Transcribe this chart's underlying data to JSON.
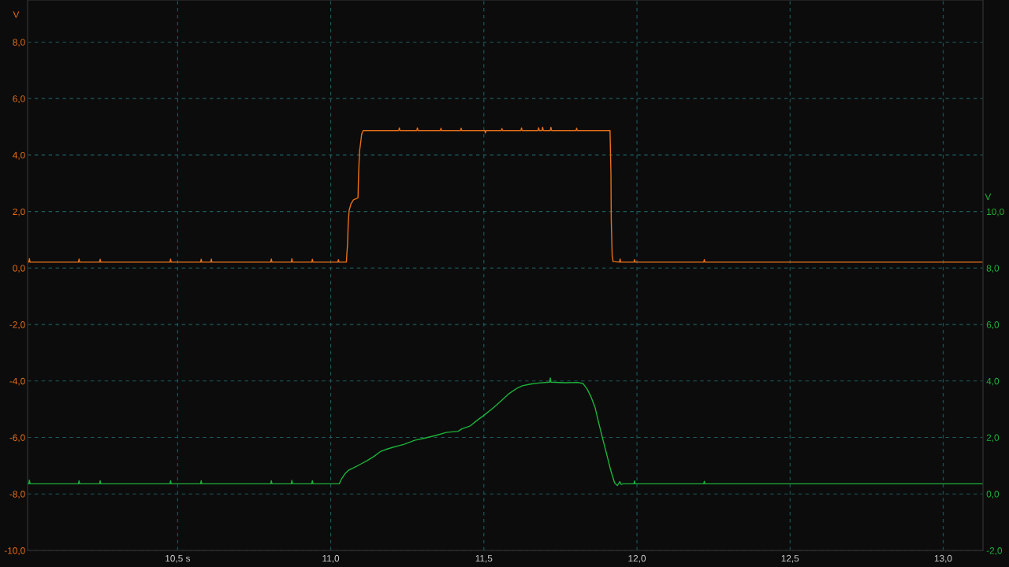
{
  "chart_data": {
    "type": "line",
    "ylabel": "V",
    "y2label": "V",
    "xlim": [
      10.01,
      13.13
    ],
    "xticks": [
      {
        "value": 10.5,
        "label": "10,5 s"
      },
      {
        "value": 11.0,
        "label": "11,0"
      },
      {
        "value": 11.5,
        "label": "11,5"
      },
      {
        "value": 12.0,
        "label": "12,0"
      },
      {
        "value": 12.5,
        "label": "12,5"
      },
      {
        "value": 13.0,
        "label": "13,0"
      }
    ],
    "ylim": [
      -10,
      9.49
    ],
    "yticks": [
      {
        "value": 8,
        "label": "8,0"
      },
      {
        "value": 6,
        "label": "6,0"
      },
      {
        "value": 4,
        "label": "4,0"
      },
      {
        "value": 2,
        "label": "2,0"
      },
      {
        "value": 0,
        "label": "0,0"
      },
      {
        "value": -2,
        "label": "-2,0"
      },
      {
        "value": -4,
        "label": "-4,0"
      },
      {
        "value": -6,
        "label": "-6,0"
      },
      {
        "value": -8,
        "label": "-8,0"
      },
      {
        "value": -10,
        "label": "-10,0"
      }
    ],
    "y2lim": [
      -2,
      17.49
    ],
    "y2ticks": [
      {
        "value": 10,
        "label": "10,0"
      },
      {
        "value": 8,
        "label": "8,0"
      },
      {
        "value": 6,
        "label": "6,0"
      },
      {
        "value": 4,
        "label": "4,0"
      },
      {
        "value": 2,
        "label": "2,0"
      },
      {
        "value": 0,
        "label": "0,0"
      },
      {
        "value": -2,
        "label": "-2,0"
      }
    ],
    "grid": true,
    "line_style": "solid",
    "series": [
      {
        "color": "#e8711a",
        "x": [
          10.01,
          10.014,
          10.016,
          10.018,
          10.176,
          10.178,
          10.18,
          10.245,
          10.247,
          10.249,
          10.475,
          10.477,
          10.479,
          10.575,
          10.577,
          10.579,
          10.608,
          10.61,
          10.612,
          10.804,
          10.806,
          10.808,
          10.871,
          10.873,
          10.875,
          10.938,
          10.94,
          10.942,
          11.023,
          11.025,
          11.027,
          11.051,
          11.055,
          11.057,
          11.06,
          11.066,
          11.074,
          11.089,
          11.091,
          11.094,
          11.098,
          11.101,
          11.106,
          11.222,
          11.224,
          11.226,
          11.281,
          11.283,
          11.285,
          11.358,
          11.36,
          11.362,
          11.424,
          11.426,
          11.428,
          11.503,
          11.505,
          11.507,
          11.557,
          11.559,
          11.561,
          11.621,
          11.623,
          11.625,
          11.677,
          11.679,
          11.681,
          11.69,
          11.692,
          11.694,
          11.717,
          11.719,
          11.721,
          11.801,
          11.803,
          11.805,
          11.912,
          11.915,
          11.916,
          11.919,
          11.922,
          11.943,
          11.945,
          11.947,
          11.99,
          11.992,
          11.994,
          12.218,
          12.22,
          12.222,
          13.13
        ],
        "values": [
          0.21,
          0.21,
          0.33,
          0.21,
          0.21,
          0.32,
          0.21,
          0.21,
          0.31,
          0.21,
          0.21,
          0.32,
          0.21,
          0.21,
          0.31,
          0.21,
          0.21,
          0.32,
          0.21,
          0.21,
          0.32,
          0.21,
          0.21,
          0.33,
          0.21,
          0.21,
          0.31,
          0.21,
          0.21,
          0.3,
          0.21,
          0.21,
          0.88,
          1.56,
          2.04,
          2.27,
          2.41,
          2.49,
          3.34,
          4.13,
          4.46,
          4.74,
          4.87,
          4.87,
          4.96,
          4.87,
          4.87,
          4.96,
          4.87,
          4.87,
          4.95,
          4.87,
          4.87,
          4.95,
          4.87,
          4.87,
          4.78,
          4.87,
          4.87,
          4.94,
          4.87,
          4.87,
          4.96,
          4.87,
          4.87,
          4.97,
          4.87,
          4.87,
          4.98,
          4.87,
          4.87,
          4.98,
          4.87,
          4.87,
          4.95,
          4.87,
          4.87,
          3.37,
          1.72,
          0.46,
          0.23,
          0.21,
          0.32,
          0.21,
          0.21,
          0.3,
          0.21,
          0.21,
          0.3,
          0.21,
          0.21
        ]
      },
      {
        "color": "#1db33a",
        "axis": "y2",
        "x": [
          10.01,
          10.014,
          10.016,
          10.018,
          10.176,
          10.178,
          10.18,
          10.245,
          10.247,
          10.249,
          10.475,
          10.477,
          10.479,
          10.575,
          10.577,
          10.579,
          10.804,
          10.806,
          10.808,
          10.871,
          10.873,
          10.875,
          10.938,
          10.94,
          10.942,
          11.028,
          11.034,
          11.046,
          11.059,
          11.077,
          11.098,
          11.119,
          11.141,
          11.162,
          11.184,
          11.205,
          11.24,
          11.274,
          11.308,
          11.343,
          11.377,
          11.416,
          11.429,
          11.454,
          11.476,
          11.502,
          11.532,
          11.558,
          11.583,
          11.609,
          11.626,
          11.652,
          11.678,
          11.715,
          11.717,
          11.719,
          11.764,
          11.807,
          11.824,
          11.837,
          11.85,
          11.863,
          11.875,
          11.888,
          11.901,
          11.914,
          11.927,
          11.936,
          11.944,
          11.948,
          11.955,
          11.99,
          11.992,
          11.994,
          12.218,
          12.22,
          12.222,
          13.13
        ],
        "values": [
          0.36,
          0.36,
          0.49,
          0.36,
          0.36,
          0.47,
          0.36,
          0.36,
          0.47,
          0.36,
          0.36,
          0.47,
          0.36,
          0.36,
          0.47,
          0.36,
          0.36,
          0.47,
          0.36,
          0.36,
          0.48,
          0.36,
          0.36,
          0.47,
          0.36,
          0.36,
          0.51,
          0.71,
          0.85,
          0.94,
          1.06,
          1.18,
          1.33,
          1.5,
          1.59,
          1.66,
          1.76,
          1.9,
          1.98,
          2.07,
          2.18,
          2.22,
          2.31,
          2.4,
          2.59,
          2.8,
          3.06,
          3.31,
          3.56,
          3.75,
          3.83,
          3.89,
          3.93,
          3.96,
          4.11,
          3.96,
          3.94,
          3.95,
          3.91,
          3.72,
          3.44,
          3.07,
          2.52,
          1.96,
          1.41,
          0.85,
          0.39,
          0.3,
          0.44,
          0.34,
          0.36,
          0.36,
          0.46,
          0.36,
          0.36,
          0.45,
          0.36,
          0.36
        ]
      }
    ]
  }
}
